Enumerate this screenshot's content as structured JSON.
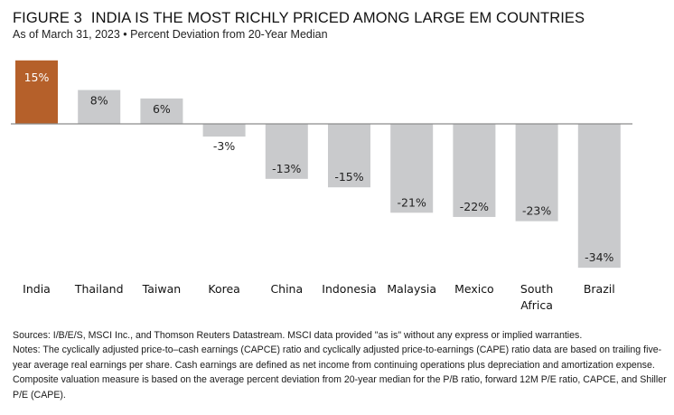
{
  "header": {
    "figure_label": "FIGURE 3",
    "title": "INDIA IS THE MOST RICHLY PRICED AMONG LARGE EM COUNTRIES",
    "subtitle": "As of March 31, 2023 • Percent Deviation from 20-Year Median"
  },
  "chart_data": {
    "type": "bar",
    "title": "INDIA IS THE MOST RICHLY PRICED AMONG LARGE EM COUNTRIES",
    "subtitle": "As of March 31, 2023 • Percent Deviation from 20-Year Median",
    "xlabel": "",
    "ylabel": "Percent Deviation from 20-Year Median",
    "categories": [
      "India",
      "Thailand",
      "Taiwan",
      "Korea",
      "China",
      "Indonesia",
      "Malaysia",
      "Mexico",
      "South Africa",
      "Brazil"
    ],
    "category_lines": [
      [
        "India"
      ],
      [
        "Thailand"
      ],
      [
        "Taiwan"
      ],
      [
        "Korea"
      ],
      [
        "China"
      ],
      [
        "Indonesia"
      ],
      [
        "Malaysia"
      ],
      [
        "Mexico"
      ],
      [
        "South",
        "Africa"
      ],
      [
        "Brazil"
      ]
    ],
    "values": [
      15,
      8,
      6,
      -3,
      -13,
      -15,
      -21,
      -22,
      -23,
      -34
    ],
    "value_labels": [
      "15%",
      "8%",
      "6%",
      "-3%",
      "-13%",
      "-15%",
      "-21%",
      "-22%",
      "-23%",
      "-34%"
    ],
    "highlight_index": 0,
    "colors": {
      "highlight": "#B5602A",
      "default": "#C9CACC",
      "axis": "#8C8C8C"
    },
    "ylim": [
      -34,
      15
    ],
    "grid": false,
    "legend": "none"
  },
  "footer": {
    "sources": "Sources: I/B/E/S, MSCI Inc., and Thomson Reuters Datastream. MSCI data provided \"as is\" without any express or implied warranties.",
    "notes": "Notes: The cyclically adjusted price-to–cash earnings (CAPCE) ratio and cyclically adjusted price-to-earnings (CAPE) ratio data are based on trailing five-year average real earnings per share. Cash earnings are defined as net income from continuing operations plus depreciation and amortization expense. Composite valuation measure is based on the average percent deviation from 20-year median for the P/B ratio, forward 12M P/E ratio, CAPCE, and Shiller P/E (CAPE)."
  }
}
